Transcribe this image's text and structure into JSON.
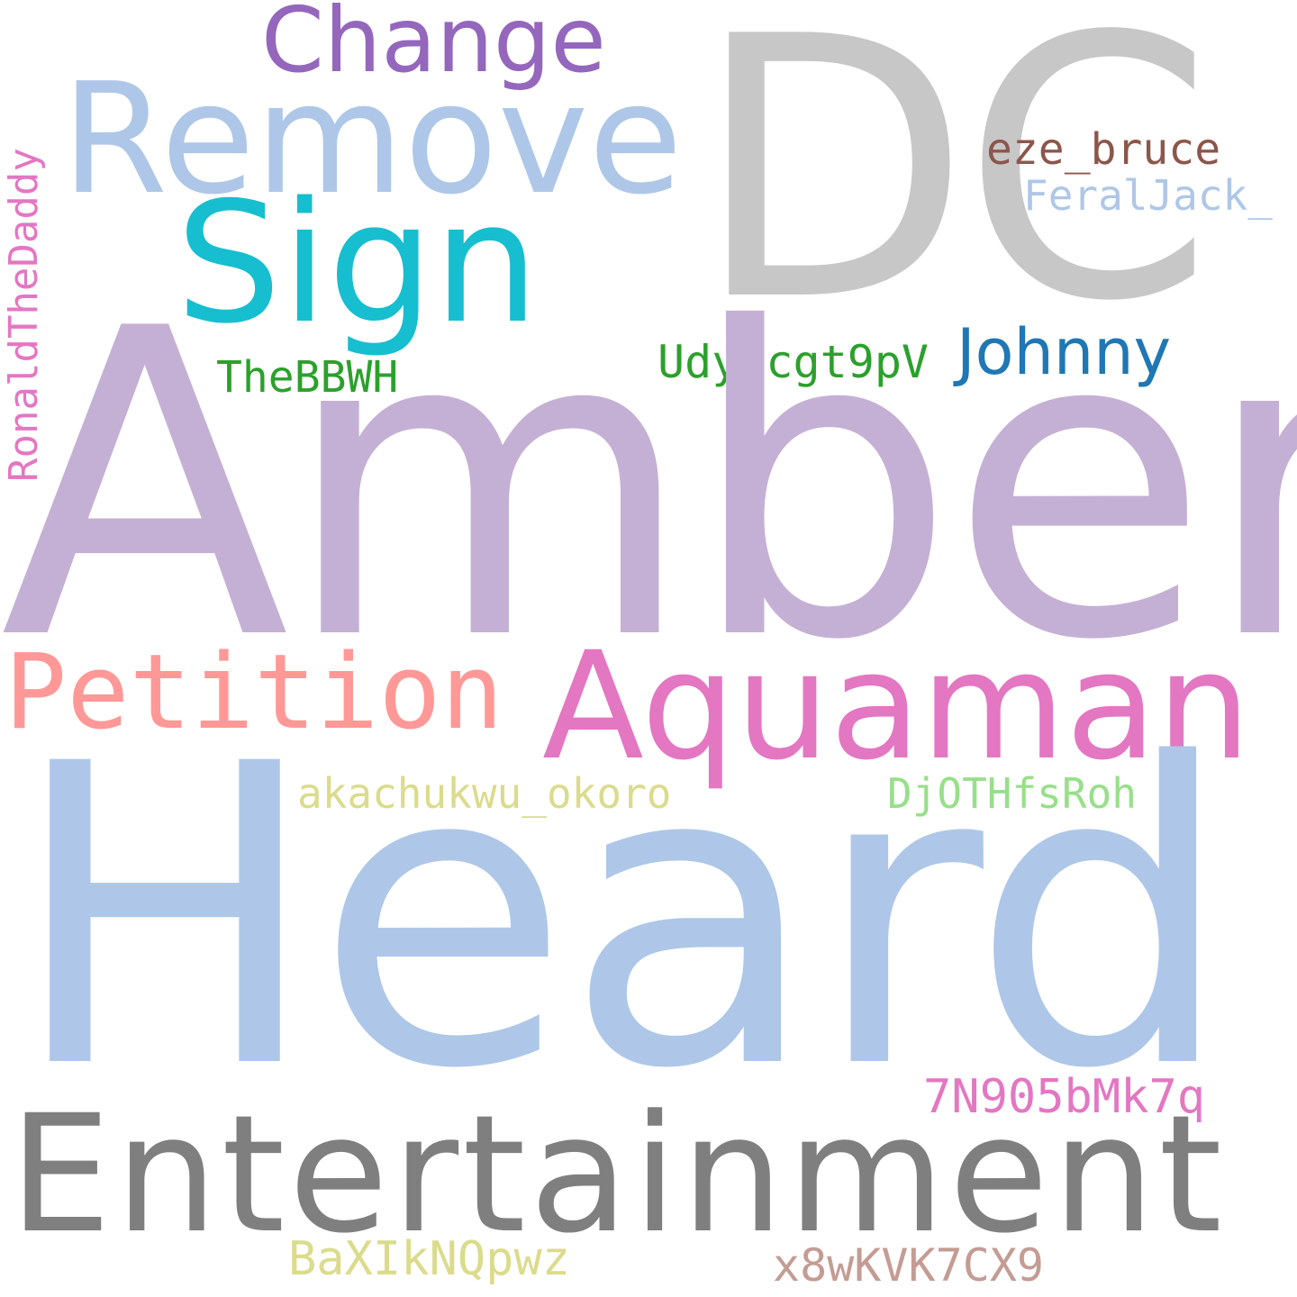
{
  "words": [
    {
      "text": "DC",
      "color": "#c7c7c7"
    },
    {
      "text": "Change",
      "color": "#9467bd"
    },
    {
      "text": "Remove",
      "color": "#aec7e8"
    },
    {
      "text": "eze_bruce",
      "color": "#8c564b"
    },
    {
      "text": "FeralJack_",
      "color": "#aec7e8"
    },
    {
      "text": "Sign",
      "color": "#17becf"
    },
    {
      "text": "RonaldTheDaddy",
      "color": "#e377c2"
    },
    {
      "text": "Johnny",
      "color": "#1f77b4"
    },
    {
      "text": "Udy1cgt9pV",
      "color": "#2ca02c"
    },
    {
      "text": "TheBBWH",
      "color": "#2ca02c"
    },
    {
      "text": "Amber",
      "color": "#c5b0d5"
    },
    {
      "text": "Petition",
      "color": "#ff9896"
    },
    {
      "text": "Aquaman",
      "color": "#e377c2"
    },
    {
      "text": "akachukwu_okoro",
      "color": "#dbdb8d"
    },
    {
      "text": "DjOTHfsRoh",
      "color": "#98df8a"
    },
    {
      "text": "Heard",
      "color": "#aec7e8"
    },
    {
      "text": "7N905bMk7q",
      "color": "#e377c2"
    },
    {
      "text": "Entertainment",
      "color": "#7f7f7f"
    },
    {
      "text": "BaXIkNQpwz",
      "color": "#dbdb8d"
    },
    {
      "text": "x8wKVK7CX9",
      "color": "#c49c94"
    }
  ]
}
